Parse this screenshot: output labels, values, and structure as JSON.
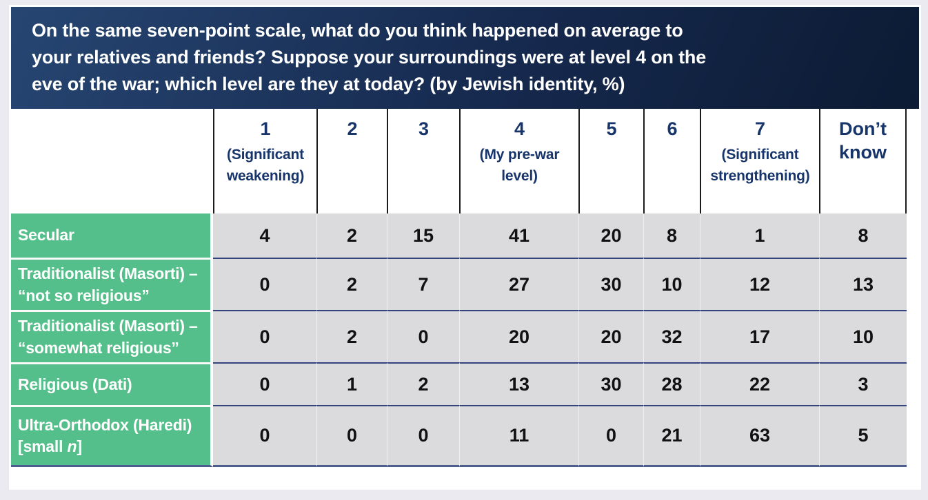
{
  "title": "On the same seven-point scale, what do you think happened on average to\nyour relatives and friends? Suppose your surroundings were at level 4 on the\neve of the war; which level are they at today? (by Jewish identity, %)",
  "colors": {
    "header_gradient_start": "#264672",
    "header_gradient_end": "#0C1B33",
    "title_text": "#FFFFFF",
    "column_header_text": "#17356B",
    "column_border": "#1A1A1A",
    "row_label_bg": "#55BF8B",
    "row_label_text": "#FFFFFF",
    "cell_bg": "#DBDBDD",
    "cell_text": "#111111",
    "row_separator": "#34437E",
    "table_bottom_border": "#4D5D8D",
    "page_bg": "#ECEAF1"
  },
  "table": {
    "columns": [
      {
        "num": "1",
        "sub": "(Significant\nweakening)"
      },
      {
        "num": "2",
        "sub": ""
      },
      {
        "num": "3",
        "sub": ""
      },
      {
        "num": "4",
        "sub": "(My pre-war\nlevel)"
      },
      {
        "num": "5",
        "sub": ""
      },
      {
        "num": "6",
        "sub": ""
      },
      {
        "num": "7",
        "sub": "(Significant\nstrengthening)"
      },
      {
        "num": "Don’t\nknow",
        "sub": ""
      }
    ],
    "rows": [
      {
        "label": "Secular",
        "values": [
          "4",
          "2",
          "15",
          "41",
          "20",
          "8",
          "1",
          "8"
        ]
      },
      {
        "label": "Traditionalist (Masorti) –\n“not so religious”",
        "values": [
          "0",
          "2",
          "7",
          "27",
          "30",
          "10",
          "12",
          "13"
        ]
      },
      {
        "label": "Traditionalist (Masorti) –\n“somewhat religious”",
        "values": [
          "0",
          "2",
          "0",
          "20",
          "20",
          "32",
          "17",
          "10"
        ]
      },
      {
        "label": "Religious (Dati)",
        "values": [
          "0",
          "1",
          "2",
          "13",
          "30",
          "28",
          "22",
          "3"
        ]
      },
      {
        "label": "Ultra-Orthodox (Haredi)\n[small ",
        "label_italic": "n",
        "label_suffix": "]",
        "values": [
          "0",
          "0",
          "0",
          "11",
          "0",
          "21",
          "63",
          "5"
        ]
      }
    ]
  },
  "chart_data": {
    "type": "table",
    "title": "On the same seven-point scale, what do you think happened on average to your relatives and friends? Suppose your surroundings were at level 4 on the eve of the war; which level are they at today? (by Jewish identity, %)",
    "units": "%",
    "columns": [
      "1 (Significant weakening)",
      "2",
      "3",
      "4 (My pre-war level)",
      "5",
      "6",
      "7 (Significant strengthening)",
      "Don't know"
    ],
    "rows": [
      {
        "label": "Secular",
        "values": [
          4,
          2,
          15,
          41,
          20,
          8,
          1,
          8
        ]
      },
      {
        "label": "Traditionalist (Masorti) – “not so religious”",
        "values": [
          0,
          2,
          7,
          27,
          30,
          10,
          12,
          13
        ]
      },
      {
        "label": "Traditionalist (Masorti) – “somewhat religious”",
        "values": [
          0,
          2,
          0,
          20,
          20,
          32,
          17,
          10
        ]
      },
      {
        "label": "Religious (Dati)",
        "values": [
          0,
          1,
          2,
          13,
          30,
          28,
          22,
          3
        ]
      },
      {
        "label": "Ultra-Orthodox (Haredi) [small n]",
        "values": [
          0,
          0,
          0,
          11,
          0,
          21,
          63,
          5
        ]
      }
    ]
  }
}
